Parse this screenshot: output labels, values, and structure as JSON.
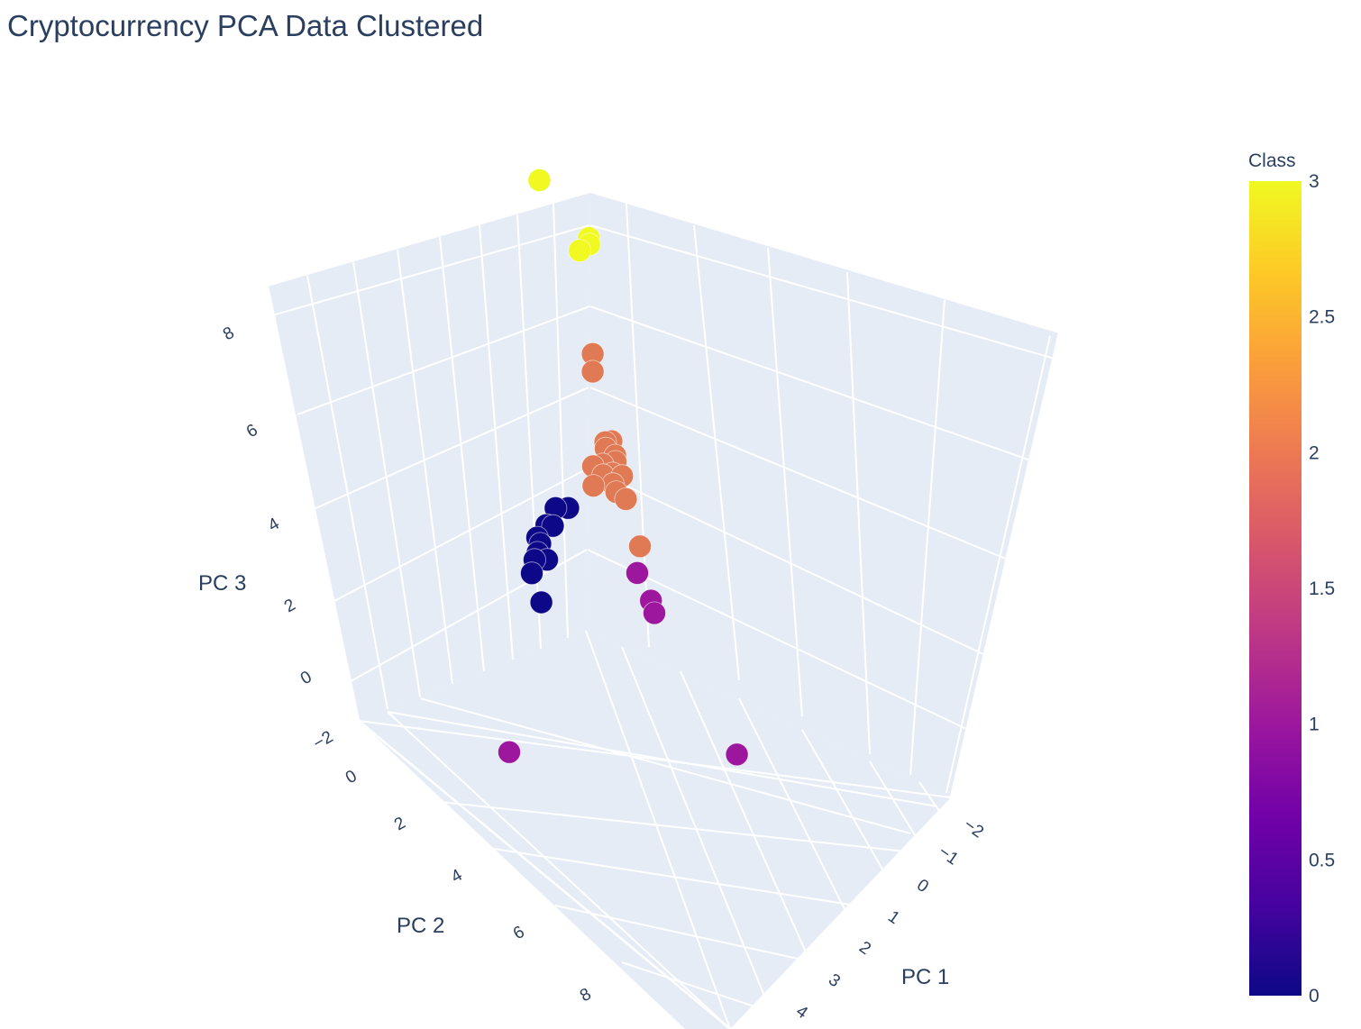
{
  "chart_data": {
    "type": "scatter",
    "title": "Cryptocurrency PCA Data Clustered",
    "axes": {
      "x": {
        "label": "PC 1",
        "ticks": [
          "−2",
          "−1",
          "0",
          "1",
          "2",
          "3",
          "4"
        ]
      },
      "y": {
        "label": "PC 2",
        "ticks": [
          "0",
          "2",
          "4",
          "6",
          "8"
        ]
      },
      "z": {
        "label": "PC 3",
        "ticks": [
          "−2",
          "0",
          "2",
          "4",
          "6",
          "8"
        ]
      }
    },
    "colorbar": {
      "title": "Class",
      "ticks": [
        "0",
        "0.5",
        "1",
        "1.5",
        "2",
        "2.5",
        "3"
      ],
      "range": [
        0,
        3
      ],
      "colorscale": [
        "#0d0887",
        "#46039f",
        "#7201a8",
        "#9c179e",
        "#bd3786",
        "#d8576b",
        "#ed7953",
        "#fb9f3a",
        "#fdca26",
        "#f0f921"
      ]
    },
    "class_colors": {
      "0": "#0d0887",
      "1": "#9c179e",
      "2": "#e07a55",
      "3": "#f0f921"
    },
    "points": [
      {
        "class": 3,
        "pc1": -1.6,
        "pc2": 1.2,
        "pc3": 8.0
      },
      {
        "class": 3,
        "pc1": -0.6,
        "pc2": 0.7,
        "pc3": 7.2
      },
      {
        "class": 3,
        "pc1": -0.5,
        "pc2": 0.8,
        "pc3": 7.2
      },
      {
        "class": 3,
        "pc1": -0.6,
        "pc2": 1.0,
        "pc3": 7.1
      },
      {
        "class": 2,
        "pc1": -0.4,
        "pc2": 0.8,
        "pc3": 4.8
      },
      {
        "class": 2,
        "pc1": -0.4,
        "pc2": 0.8,
        "pc3": 4.4
      },
      {
        "class": 2,
        "pc1": -0.3,
        "pc2": 0.5,
        "pc3": 2.7
      },
      {
        "class": 2,
        "pc1": -0.3,
        "pc2": 0.3,
        "pc3": 2.6
      },
      {
        "class": 2,
        "pc1": -0.2,
        "pc2": 0.6,
        "pc3": 2.7
      },
      {
        "class": 2,
        "pc1": -0.1,
        "pc2": 0.4,
        "pc3": 2.5
      },
      {
        "class": 2,
        "pc1": 0.0,
        "pc2": 0.5,
        "pc3": 2.5
      },
      {
        "class": 2,
        "pc1": -0.3,
        "pc2": 0.9,
        "pc3": 2.4
      },
      {
        "class": 2,
        "pc1": -0.2,
        "pc2": 0.7,
        "pc3": 2.4
      },
      {
        "class": 2,
        "pc1": -0.1,
        "pc2": 0.8,
        "pc3": 2.3
      },
      {
        "class": 2,
        "pc1": 0.0,
        "pc2": 0.6,
        "pc3": 2.3
      },
      {
        "class": 2,
        "pc1": 0.1,
        "pc2": 0.7,
        "pc3": 2.2
      },
      {
        "class": 2,
        "pc1": 0.2,
        "pc2": 0.7,
        "pc3": 2.1
      },
      {
        "class": 2,
        "pc1": 0.1,
        "pc2": 0.4,
        "pc3": 2.2
      },
      {
        "class": 2,
        "pc1": -0.2,
        "pc2": 1.0,
        "pc3": 2.1
      },
      {
        "class": 2,
        "pc1": 0.3,
        "pc2": 0.5,
        "pc3": 1.9
      },
      {
        "class": 2,
        "pc1": 0.8,
        "pc2": 0.6,
        "pc3": 1.3
      },
      {
        "class": 1,
        "pc1": 0.9,
        "pc2": 0.8,
        "pc3": 0.9
      },
      {
        "class": 1,
        "pc1": 1.3,
        "pc2": 0.8,
        "pc3": 0.6
      },
      {
        "class": 1,
        "pc1": 1.4,
        "pc2": 0.8,
        "pc3": 0.4
      },
      {
        "class": 1,
        "pc1": 1.1,
        "pc2": 5.2,
        "pc3": -0.3
      },
      {
        "class": 1,
        "pc1": 3.9,
        "pc2": 0.9,
        "pc3": -0.7
      },
      {
        "class": 0,
        "pc1": -0.4,
        "pc2": 1.6,
        "pc3": 1.8
      },
      {
        "class": 0,
        "pc1": -0.5,
        "pc2": 1.9,
        "pc3": 1.9
      },
      {
        "class": 0,
        "pc1": -0.4,
        "pc2": 2.1,
        "pc3": 1.7
      },
      {
        "class": 0,
        "pc1": -0.5,
        "pc2": 2.2,
        "pc3": 1.7
      },
      {
        "class": 0,
        "pc1": -0.5,
        "pc2": 2.5,
        "pc3": 1.6
      },
      {
        "class": 0,
        "pc1": -0.4,
        "pc2": 2.6,
        "pc3": 1.4
      },
      {
        "class": 0,
        "pc1": -0.4,
        "pc2": 2.7,
        "pc3": 1.3
      },
      {
        "class": 0,
        "pc1": -0.5,
        "pc2": 2.4,
        "pc3": 1.4
      },
      {
        "class": 0,
        "pc1": -0.3,
        "pc2": 2.4,
        "pc3": 1.2
      },
      {
        "class": 0,
        "pc1": -0.3,
        "pc2": 2.9,
        "pc3": 1.2
      },
      {
        "class": 0,
        "pc1": -0.2,
        "pc2": 2.7,
        "pc3": 0.5
      }
    ]
  }
}
